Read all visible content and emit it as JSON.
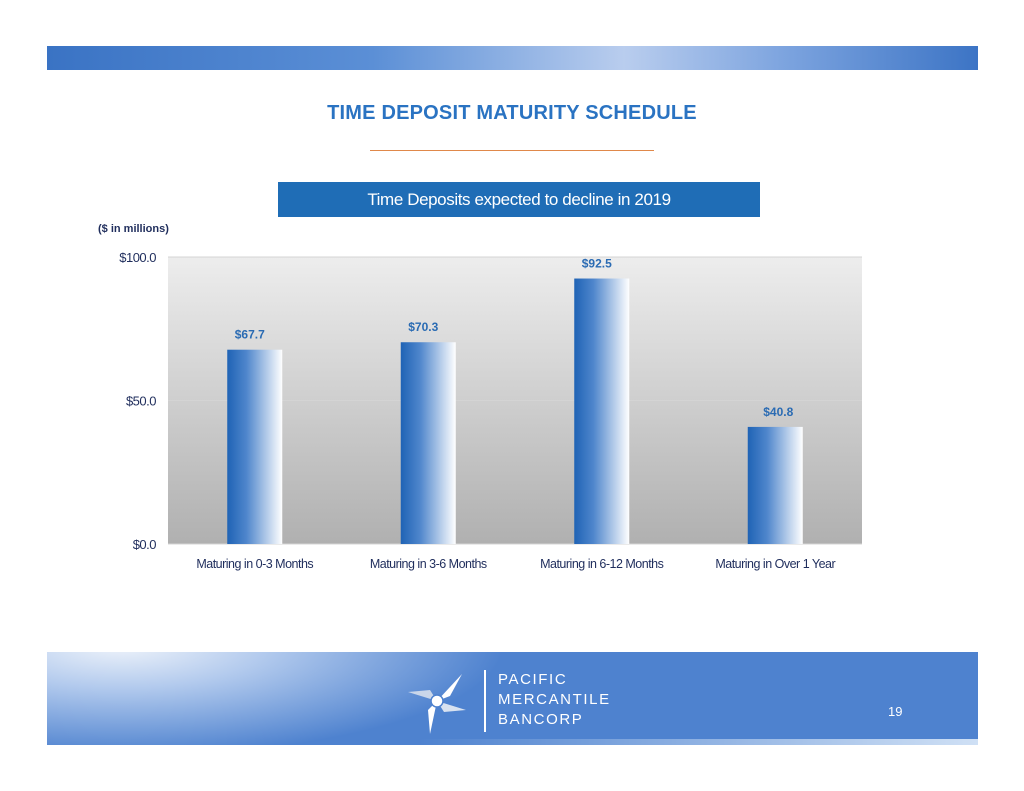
{
  "slide": {
    "title": "TIME DEPOSIT MATURITY SCHEDULE",
    "subtitle": "Time Deposits expected to decline in 2019",
    "units": "($ in millions)",
    "page_number": "19"
  },
  "logo": {
    "lines": [
      "PACIFIC",
      "MERCANTILE",
      "BANCORP"
    ]
  },
  "colors": {
    "accent": "#2a73c2",
    "subtitle_box": "#1f6db6",
    "rule": "#e0884a",
    "bar_dark": "#1f63b5",
    "label": "#2a6bb3"
  },
  "chart_data": {
    "type": "bar",
    "categories": [
      "Maturing in 0-3 Months",
      "Maturing in 3-6 Months",
      "Maturing in 6-12 Months",
      "Maturing in Over 1 Year"
    ],
    "values": [
      67.7,
      70.3,
      92.5,
      40.8
    ],
    "data_labels": [
      "$67.7",
      "$70.3",
      "$92.5",
      "$40.8"
    ],
    "ylim": [
      0,
      100
    ],
    "y_ticks": [
      0,
      50,
      100
    ],
    "y_tick_labels": [
      "$0.0",
      "$50.0",
      "$100.0"
    ],
    "grid": true,
    "legend": "none"
  }
}
